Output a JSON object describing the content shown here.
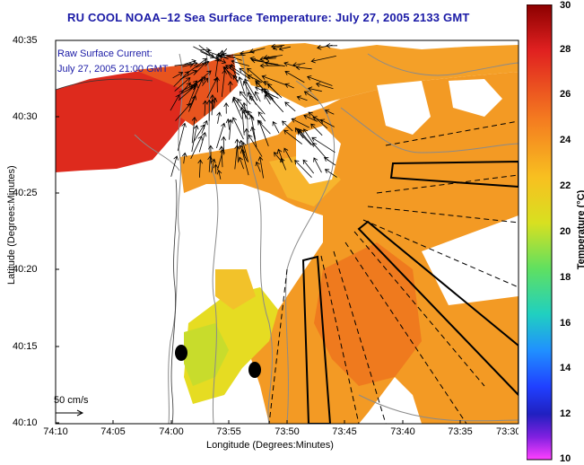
{
  "title": "RU COOL  NOAA–12  Sea Surface Temperature:  July 27, 2005 2133 GMT",
  "current_label_1": "Raw Surface Current:",
  "current_label_2": "July 27, 2005 21:00 GMT",
  "scale_label": "50 cm/s",
  "y_axis_title": "Latitude (Degrees:Minutes)",
  "x_axis_title": "Longitude (Degrees:Minutes)",
  "y_ticks": [
    "40:35",
    "40:30",
    "40:25",
    "40:20",
    "40:15",
    "40:10"
  ],
  "x_ticks": [
    "74:10",
    "74:05",
    "74:00",
    "73:55",
    "73:50",
    "73:45",
    "73:40",
    "73:35",
    "73:30"
  ],
  "colorbar": {
    "title": "Temperature (°C)",
    "min": 10,
    "max": 30,
    "ticks": [
      "30",
      "28",
      "26",
      "24",
      "22",
      "20",
      "18",
      "16",
      "14",
      "12",
      "10"
    ]
  },
  "colors": {
    "title": "#1a1aa6",
    "land": "#ffffff",
    "warm": "#e03020",
    "mid": "#f59a2a"
  }
}
